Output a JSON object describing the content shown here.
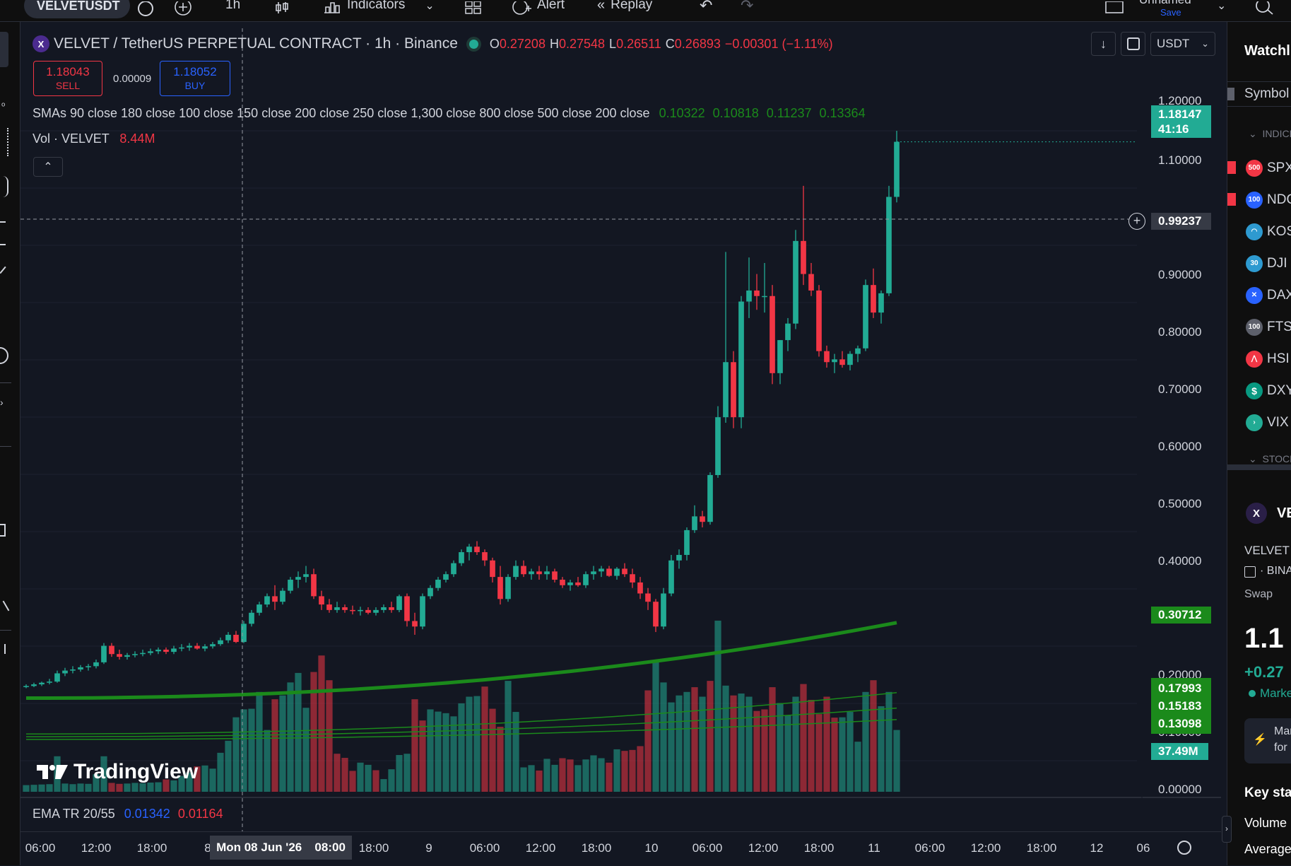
{
  "toolbar": {
    "symbol": "VELVETUSDT",
    "interval": "1h",
    "indicators_label": "Indicators",
    "alert_label": "Alert",
    "replay_label": "Replay",
    "layout_name": "Unnamed",
    "save_label": "Save"
  },
  "legend": {
    "title": "VELVET / TetherUS PERPETUAL CONTRACT · 1h · Binance",
    "o_label": "O",
    "o_value": "0.27208",
    "h_label": "H",
    "h_value": "0.27548",
    "l_label": "L",
    "l_value": "0.26511",
    "c_label": "C",
    "c_value": "0.26893",
    "change": "−0.00301 (−1.11%)",
    "sell_price": "1.18043",
    "sell_label": "SELL",
    "spread": "0.00009",
    "buy_price": "1.18052",
    "buy_label": "BUY",
    "smas_label": "SMAs 90 close 180 close 100 close 150 close 200 close 250 close 1,300 close 800 close 500 close 200 close",
    "sma_values": [
      "0.10322",
      "0.10818",
      "0.11237",
      "0.13364"
    ],
    "vol_label": "Vol · VELVET",
    "vol_value": "8.44M",
    "ema_label": "EMA TR 20/55",
    "ema_value1": "0.01342",
    "ema_value2": "0.01164",
    "currency": "USDT"
  },
  "logo_text": "TradingView",
  "price_axis": {
    "labels": [
      "1.20000",
      "1.10000",
      "0.90000",
      "0.80000",
      "0.70000",
      "0.60000",
      "0.50000",
      "0.40000",
      "0.20000",
      "0.10000",
      "0.00000"
    ],
    "last_price": "1.18147",
    "countdown": "41:16",
    "crosshair_price": "0.99237",
    "sma_tag": "0.30712",
    "sma_tags": [
      "0.17993",
      "0.15183",
      "0.13098"
    ],
    "volume_tag": "37.49M"
  },
  "time_axis": {
    "labels": [
      "06:00",
      "12:00",
      "18:00",
      "8",
      "08:00",
      "18:00",
      "9",
      "06:00",
      "12:00",
      "18:00",
      "10",
      "06:00",
      "12:00",
      "18:00",
      "11",
      "06:00",
      "12:00",
      "18:00",
      "12",
      "06"
    ],
    "crosshair_date": "Mon 08 Jun '26"
  },
  "watchlist": {
    "title": "Watchlist",
    "symbol_header": "Symbol",
    "section_indices": "INDICES",
    "items": [
      {
        "badge": "500",
        "name": "SPX",
        "color": "#f23645"
      },
      {
        "badge": "100",
        "name": "NDQ",
        "color": "#2962ff"
      },
      {
        "badge": "",
        "name": "KOSPI",
        "color": "#2e9ad0"
      },
      {
        "badge": "30",
        "name": "DJI",
        "color": "#2e9ad0"
      },
      {
        "badge": "",
        "name": "DAX",
        "color": "#2962ff"
      },
      {
        "badge": "100",
        "name": "FTSE",
        "color": "#5d606b"
      },
      {
        "badge": "",
        "name": "HSI",
        "color": "#f23645"
      },
      {
        "badge": "$",
        "name": "DXY",
        "color": "#089981"
      },
      {
        "badge": "",
        "name": "VIX",
        "color": "#22ab94"
      }
    ],
    "section_stocks": "STOCKS",
    "detail_symbol": "VELVET",
    "detail_name": "VELVET",
    "detail_exchange": "BINANCE",
    "detail_type": "Swap",
    "detail_price": "1.1",
    "detail_change": "+0.27",
    "detail_market": "Market",
    "promo_line1": "Man",
    "promo_line2": "for",
    "key_stats": "Key stats",
    "volume": "Volume",
    "average": "Average"
  },
  "chart_data": {
    "type": "candlestick",
    "symbol": "VELVETUSDT",
    "timeframe": "1h",
    "y_range": [
      0,
      1.2
    ],
    "candles": [
      [
        0.19,
        0.195,
        0.188,
        0.192
      ],
      [
        0.192,
        0.198,
        0.19,
        0.195
      ],
      [
        0.195,
        0.2,
        0.192,
        0.198
      ],
      [
        0.198,
        0.205,
        0.195,
        0.2
      ],
      [
        0.2,
        0.22,
        0.198,
        0.215
      ],
      [
        0.215,
        0.225,
        0.21,
        0.22
      ],
      [
        0.22,
        0.228,
        0.215,
        0.222
      ],
      [
        0.222,
        0.23,
        0.218,
        0.226
      ],
      [
        0.226,
        0.232,
        0.22,
        0.228
      ],
      [
        0.228,
        0.24,
        0.224,
        0.235
      ],
      [
        0.235,
        0.27,
        0.232,
        0.265
      ],
      [
        0.265,
        0.27,
        0.245,
        0.25
      ],
      [
        0.25,
        0.258,
        0.24,
        0.245
      ],
      [
        0.245,
        0.252,
        0.24,
        0.248
      ],
      [
        0.248,
        0.255,
        0.244,
        0.25
      ],
      [
        0.25,
        0.258,
        0.246,
        0.252
      ],
      [
        0.252,
        0.26,
        0.248,
        0.255
      ],
      [
        0.255,
        0.262,
        0.25,
        0.258
      ],
      [
        0.258,
        0.262,
        0.25,
        0.254
      ],
      [
        0.254,
        0.265,
        0.25,
        0.26
      ],
      [
        0.26,
        0.268,
        0.255,
        0.262
      ],
      [
        0.262,
        0.27,
        0.256,
        0.265
      ],
      [
        0.265,
        0.27,
        0.258,
        0.26
      ],
      [
        0.26,
        0.268,
        0.255,
        0.264
      ],
      [
        0.264,
        0.272,
        0.26,
        0.268
      ],
      [
        0.268,
        0.28,
        0.265,
        0.275
      ],
      [
        0.275,
        0.29,
        0.27,
        0.285
      ],
      [
        0.285,
        0.292,
        0.27,
        0.272
      ],
      [
        0.272,
        0.31,
        0.27,
        0.305
      ],
      [
        0.305,
        0.33,
        0.3,
        0.325
      ],
      [
        0.325,
        0.345,
        0.32,
        0.34
      ],
      [
        0.34,
        0.36,
        0.335,
        0.355
      ],
      [
        0.355,
        0.375,
        0.33,
        0.345
      ],
      [
        0.345,
        0.37,
        0.34,
        0.365
      ],
      [
        0.365,
        0.39,
        0.36,
        0.385
      ],
      [
        0.385,
        0.4,
        0.37,
        0.39
      ],
      [
        0.39,
        0.41,
        0.38,
        0.395
      ],
      [
        0.395,
        0.405,
        0.35,
        0.355
      ],
      [
        0.355,
        0.365,
        0.33,
        0.34
      ],
      [
        0.34,
        0.35,
        0.325,
        0.33
      ],
      [
        0.33,
        0.345,
        0.325,
        0.335
      ],
      [
        0.335,
        0.34,
        0.325,
        0.33
      ],
      [
        0.33,
        0.338,
        0.322,
        0.328
      ],
      [
        0.328,
        0.336,
        0.32,
        0.33
      ],
      [
        0.33,
        0.335,
        0.322,
        0.325
      ],
      [
        0.325,
        0.335,
        0.32,
        0.33
      ],
      [
        0.33,
        0.34,
        0.325,
        0.335
      ],
      [
        0.335,
        0.345,
        0.325,
        0.33
      ],
      [
        0.33,
        0.358,
        0.326,
        0.355
      ],
      [
        0.355,
        0.36,
        0.3,
        0.31
      ],
      [
        0.31,
        0.325,
        0.285,
        0.3
      ],
      [
        0.3,
        0.36,
        0.295,
        0.355
      ],
      [
        0.355,
        0.375,
        0.35,
        0.37
      ],
      [
        0.37,
        0.39,
        0.365,
        0.385
      ],
      [
        0.385,
        0.4,
        0.38,
        0.395
      ],
      [
        0.395,
        0.42,
        0.39,
        0.415
      ],
      [
        0.415,
        0.44,
        0.41,
        0.435
      ],
      [
        0.435,
        0.45,
        0.42,
        0.445
      ],
      [
        0.445,
        0.455,
        0.43,
        0.435
      ],
      [
        0.435,
        0.44,
        0.41,
        0.42
      ],
      [
        0.42,
        0.425,
        0.38,
        0.39
      ],
      [
        0.39,
        0.41,
        0.34,
        0.35
      ],
      [
        0.35,
        0.395,
        0.345,
        0.39
      ],
      [
        0.39,
        0.42,
        0.385,
        0.41
      ],
      [
        0.41,
        0.42,
        0.39,
        0.395
      ],
      [
        0.395,
        0.405,
        0.385,
        0.4
      ],
      [
        0.4,
        0.41,
        0.385,
        0.395
      ],
      [
        0.395,
        0.41,
        0.385,
        0.4
      ],
      [
        0.4,
        0.405,
        0.38,
        0.385
      ],
      [
        0.385,
        0.39,
        0.37,
        0.375
      ],
      [
        0.375,
        0.385,
        0.365,
        0.38
      ],
      [
        0.38,
        0.39,
        0.372,
        0.375
      ],
      [
        0.375,
        0.4,
        0.37,
        0.395
      ],
      [
        0.395,
        0.41,
        0.385,
        0.4
      ],
      [
        0.4,
        0.41,
        0.39,
        0.405
      ],
      [
        0.405,
        0.41,
        0.39,
        0.392
      ],
      [
        0.392,
        0.408,
        0.385,
        0.405
      ],
      [
        0.405,
        0.415,
        0.39,
        0.395
      ],
      [
        0.395,
        0.405,
        0.37,
        0.38
      ],
      [
        0.38,
        0.39,
        0.35,
        0.36
      ],
      [
        0.36,
        0.37,
        0.33,
        0.345
      ],
      [
        0.345,
        0.35,
        0.29,
        0.3
      ],
      [
        0.3,
        0.37,
        0.295,
        0.36
      ],
      [
        0.36,
        0.43,
        0.355,
        0.42
      ],
      [
        0.42,
        0.44,
        0.405,
        0.43
      ],
      [
        0.43,
        0.48,
        0.42,
        0.475
      ],
      [
        0.475,
        0.52,
        0.47,
        0.5
      ],
      [
        0.5,
        0.51,
        0.48,
        0.49
      ],
      [
        0.49,
        0.58,
        0.485,
        0.575
      ],
      [
        0.575,
        0.7,
        0.57,
        0.68
      ],
      [
        0.68,
        0.98,
        0.67,
        0.78
      ],
      [
        0.78,
        0.8,
        0.66,
        0.68
      ],
      [
        0.68,
        0.9,
        0.66,
        0.89
      ],
      [
        0.89,
        0.97,
        0.86,
        0.91
      ],
      [
        0.91,
        0.94,
        0.875,
        0.9
      ],
      [
        0.9,
        0.96,
        0.87,
        0.9
      ],
      [
        0.9,
        0.92,
        0.74,
        0.76
      ],
      [
        0.76,
        0.82,
        0.74,
        0.82
      ],
      [
        0.82,
        0.86,
        0.8,
        0.85
      ],
      [
        0.85,
        1.02,
        0.84,
        1.0
      ],
      [
        1.0,
        1.1,
        0.92,
        0.94
      ],
      [
        0.94,
        0.96,
        0.9,
        0.91
      ],
      [
        0.91,
        0.92,
        0.79,
        0.8
      ],
      [
        0.8,
        0.81,
        0.77,
        0.78
      ],
      [
        0.78,
        0.795,
        0.76,
        0.785
      ],
      [
        0.785,
        0.8,
        0.77,
        0.775
      ],
      [
        0.775,
        0.8,
        0.765,
        0.795
      ],
      [
        0.795,
        0.81,
        0.78,
        0.805
      ],
      [
        0.805,
        0.93,
        0.8,
        0.92
      ],
      [
        0.92,
        0.95,
        0.86,
        0.87
      ],
      [
        0.87,
        0.91,
        0.85,
        0.905
      ],
      [
        0.905,
        1.1,
        0.9,
        1.08
      ],
      [
        1.08,
        1.2,
        1.07,
        1.18
      ]
    ],
    "volume_range": [
      0,
      58
    ],
    "volumes": [
      [
        2.1,
        1
      ],
      [
        2.2,
        1
      ],
      [
        2.3,
        1
      ],
      [
        2.4,
        1
      ],
      [
        11.2,
        1
      ],
      [
        2.6,
        1
      ],
      [
        2.4,
        1
      ],
      [
        2.6,
        1
      ],
      [
        2.5,
        1
      ],
      [
        5.5,
        1
      ],
      [
        11.2,
        1
      ],
      [
        2.8,
        0
      ],
      [
        2.5,
        0
      ],
      [
        2.6,
        1
      ],
      [
        2.8,
        1
      ],
      [
        2.7,
        1
      ],
      [
        2.9,
        1
      ],
      [
        3.0,
        1
      ],
      [
        3.9,
        0
      ],
      [
        3.6,
        1
      ],
      [
        5.0,
        1
      ],
      [
        6.0,
        1
      ],
      [
        8.0,
        0
      ],
      [
        8.3,
        1
      ],
      [
        7.3,
        1
      ],
      [
        12.3,
        1
      ],
      [
        16.1,
        1
      ],
      [
        23.5,
        1
      ],
      [
        26.0,
        1
      ],
      [
        26.2,
        1
      ],
      [
        31.5,
        1
      ],
      [
        19.5,
        1
      ],
      [
        29.2,
        0
      ],
      [
        30.4,
        1
      ],
      [
        34.5,
        1
      ],
      [
        37.5,
        1
      ],
      [
        26.5,
        1
      ],
      [
        37.8,
        0
      ],
      [
        43.0,
        0
      ],
      [
        35.2,
        0
      ],
      [
        12.0,
        0
      ],
      [
        10.7,
        0
      ],
      [
        6.6,
        0
      ],
      [
        9.2,
        1
      ],
      [
        8.5,
        1
      ],
      [
        6.8,
        0
      ],
      [
        4.0,
        1
      ],
      [
        7.1,
        1
      ],
      [
        11.6,
        1
      ],
      [
        12.0,
        1
      ],
      [
        29.2,
        0
      ],
      [
        22.5,
        0
      ],
      [
        26.0,
        1
      ],
      [
        25.3,
        1
      ],
      [
        24.8,
        1
      ],
      [
        23.8,
        1
      ],
      [
        27.9,
        1
      ],
      [
        30.0,
        1
      ],
      [
        30.2,
        1
      ],
      [
        33.2,
        0
      ],
      [
        26.2,
        0
      ],
      [
        20.5,
        0
      ],
      [
        35.0,
        1
      ],
      [
        25.2,
        1
      ],
      [
        7.7,
        1
      ],
      [
        8.4,
        1
      ],
      [
        6.7,
        0
      ],
      [
        10.4,
        1
      ],
      [
        8.5,
        1
      ],
      [
        10.6,
        0
      ],
      [
        10.2,
        0
      ],
      [
        8.4,
        1
      ],
      [
        10.2,
        1
      ],
      [
        11.5,
        1
      ],
      [
        10.6,
        1
      ],
      [
        9.2,
        0
      ],
      [
        13.4,
        1
      ],
      [
        12.9,
        0
      ],
      [
        13.2,
        0
      ],
      [
        14.4,
        0
      ],
      [
        32.0,
        0
      ],
      [
        41.2,
        1
      ],
      [
        34.5,
        1
      ],
      [
        28.2,
        1
      ],
      [
        30.4,
        1
      ],
      [
        31.5,
        1
      ],
      [
        33.0,
        0
      ],
      [
        30.0,
        1
      ],
      [
        35.0,
        0
      ],
      [
        54.0,
        1
      ],
      [
        33.5,
        1
      ],
      [
        30.4,
        0
      ],
      [
        31.0,
        1
      ],
      [
        30.0,
        1
      ],
      [
        25.5,
        0
      ],
      [
        26.0,
        0
      ],
      [
        33.0,
        0
      ],
      [
        28.0,
        1
      ],
      [
        24.2,
        1
      ],
      [
        30.0,
        1
      ],
      [
        34.0,
        0
      ],
      [
        29.0,
        0
      ],
      [
        24.5,
        0
      ],
      [
        30.0,
        0
      ],
      [
        23.4,
        0
      ],
      [
        23.5,
        1
      ],
      [
        25.2,
        1
      ],
      [
        15.8,
        1
      ],
      [
        31.5,
        1
      ],
      [
        35.2,
        0
      ],
      [
        27.0,
        1
      ],
      [
        31.5,
        1
      ],
      [
        19.5,
        1
      ]
    ],
    "sma_lines": [
      {
        "start": 0.17,
        "end": 0.307,
        "thick": true
      },
      {
        "start": 0.105,
        "end": 0.18,
        "thick": false
      },
      {
        "start": 0.1,
        "end": 0.152,
        "thick": false
      },
      {
        "start": 0.095,
        "end": 0.131,
        "thick": false
      }
    ],
    "colors": {
      "up": "#22ab94",
      "down": "#f23645",
      "vol_up": "#22ab94",
      "vol_down": "#f23645",
      "sma": "#1b8a1b"
    }
  }
}
